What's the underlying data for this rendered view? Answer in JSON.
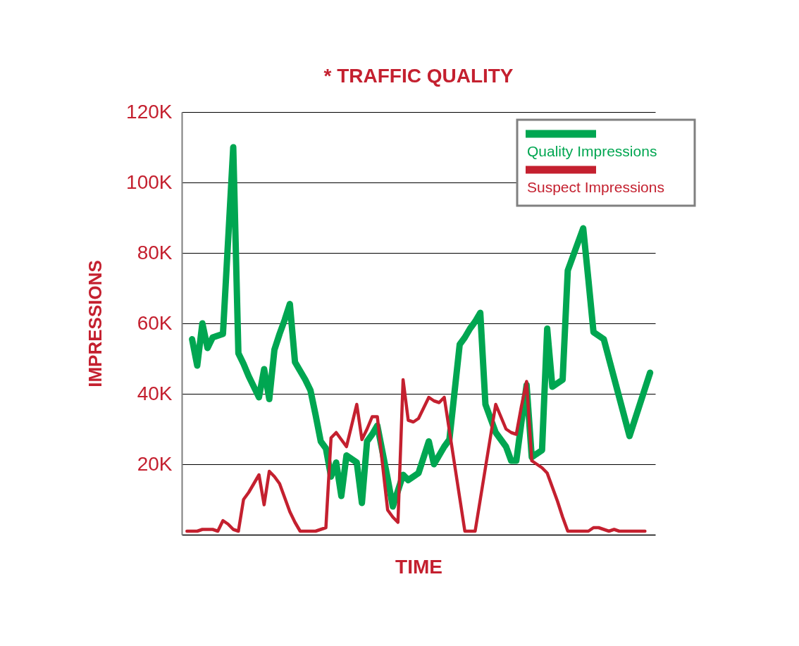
{
  "chart_data": {
    "type": "line",
    "title": "* TRAFFIC QUALITY",
    "xlabel": "TIME",
    "ylabel": "IMPRESSIONS",
    "categories": [
      null,
      null,
      null,
      null,
      null,
      null,
      null,
      null,
      null,
      null,
      null,
      null,
      null,
      null,
      null,
      null,
      null,
      null,
      null,
      null,
      null,
      null,
      null,
      null,
      null,
      null,
      null,
      null,
      null,
      null,
      null,
      null,
      null,
      null,
      null,
      null,
      null,
      null,
      null,
      null,
      null,
      null,
      null,
      null,
      null,
      null,
      null,
      null,
      null,
      null,
      null,
      null,
      null,
      null,
      null,
      null,
      null,
      null,
      null,
      null,
      null,
      null,
      null,
      null,
      null,
      null,
      null,
      null,
      null,
      null,
      null,
      null,
      null,
      null,
      null,
      null,
      null,
      null,
      null,
      null,
      null,
      null,
      null,
      null,
      null,
      null,
      null,
      null,
      null,
      null,
      null
    ],
    "series": [
      {
        "name": "Quality Impressions",
        "color": "#00a651",
        "values": [
          null,
          55500,
          48000,
          60000,
          53000,
          56000,
          56500,
          57000,
          83500,
          110000,
          51500,
          48500,
          45000,
          42000,
          39000,
          47000,
          38500,
          52500,
          57000,
          61000,
          65500,
          49000,
          46500,
          44000,
          41000,
          34000,
          26500,
          24500,
          16500,
          20500,
          11000,
          22500,
          21500,
          20500,
          9000,
          26500,
          28500,
          31000,
          23500,
          16000,
          8000,
          12500,
          17000,
          15500,
          16500,
          17500,
          22000,
          26500,
          20000,
          22500,
          25000,
          27000,
          40500,
          54000,
          56000,
          58500,
          60500,
          63000,
          37000,
          33000,
          29000,
          27000,
          25000,
          21000,
          21000,
          32000,
          42500,
          22000,
          23000,
          24000,
          58500,
          42000,
          43000,
          44000,
          75000,
          79000,
          83000,
          87000,
          72500,
          57500,
          56500,
          55500,
          50000,
          44500,
          39000,
          33500,
          28000,
          32500,
          37000,
          41500,
          46000
        ]
      },
      {
        "name": "Suspect Impressions",
        "color": "#c4202f",
        "values": [
          1000,
          1000,
          1000,
          1500,
          1500,
          1500,
          1000,
          4000,
          3000,
          1500,
          1000,
          10000,
          12000,
          14500,
          17000,
          8500,
          18000,
          16500,
          14500,
          10500,
          6500,
          3500,
          1000,
          1000,
          1000,
          1000,
          1500,
          2000,
          27500,
          29000,
          27000,
          25000,
          31000,
          37000,
          27000,
          30000,
          33500,
          33500,
          20000,
          7000,
          5000,
          3500,
          44000,
          32500,
          32000,
          33000,
          36000,
          39000,
          38000,
          37500,
          39000,
          29500,
          20000,
          10500,
          1000,
          1000,
          1000,
          10000,
          19000,
          28000,
          37000,
          33500,
          30000,
          29000,
          28500,
          36500,
          43500,
          21000,
          20000,
          19000,
          17500,
          13500,
          9500,
          5000,
          1000,
          1000,
          1000,
          1000,
          1000,
          2000,
          2000,
          1500,
          1000,
          1500,
          1000,
          1000,
          1000,
          1000,
          1000,
          1000,
          null
        ]
      }
    ],
    "ylim": [
      0,
      120000
    ],
    "yticks": [
      {
        "value": 20000,
        "label": "20K"
      },
      {
        "value": 40000,
        "label": "40K"
      },
      {
        "value": 60000,
        "label": "60K"
      },
      {
        "value": 80000,
        "label": "80K"
      },
      {
        "value": 100000,
        "label": "100K"
      },
      {
        "value": 120000,
        "label": "120K"
      }
    ],
    "grid": "y",
    "legend": "top right",
    "tick_labels": "y"
  }
}
